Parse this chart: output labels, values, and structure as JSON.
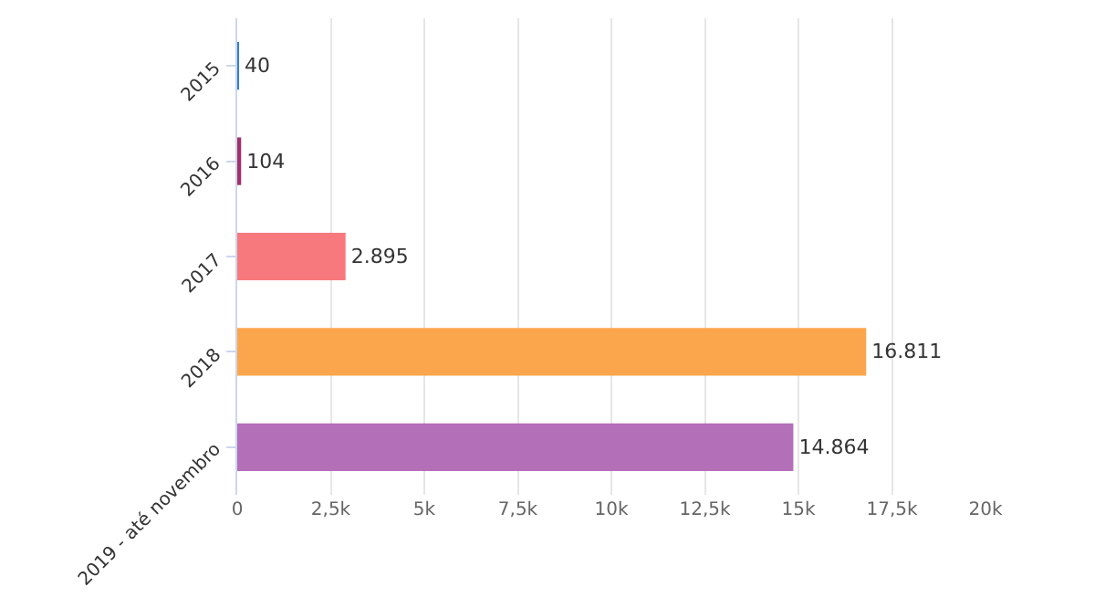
{
  "chart_data": {
    "type": "bar",
    "orientation": "horizontal",
    "categories": [
      "2015",
      "2016",
      "2017",
      "2018",
      "2019 - até novembro"
    ],
    "values": [
      40,
      104,
      2895,
      16811,
      14864
    ],
    "colors": [
      "#2f7ed8",
      "#a0306e",
      "#f7797d",
      "#fba64c",
      "#b46fb9"
    ],
    "value_labels": [
      "40",
      "104",
      "2.895",
      "16.811",
      "14.864"
    ],
    "xlim": [
      0,
      20000
    ],
    "xticks": [
      0,
      {
        "value": 2500,
        "label": "2,5k"
      },
      {
        "value": 5000,
        "label": "5k"
      },
      {
        "value": 7500,
        "label": "7,5k"
      },
      {
        "value": 10000,
        "label": "10k"
      },
      {
        "value": 12500,
        "label": "12,5k"
      },
      {
        "value": 15000,
        "label": "15k"
      },
      {
        "value": 17500,
        "label": "17,5k"
      },
      {
        "value": 20000,
        "label": "20k"
      }
    ],
    "grid": "x"
  }
}
